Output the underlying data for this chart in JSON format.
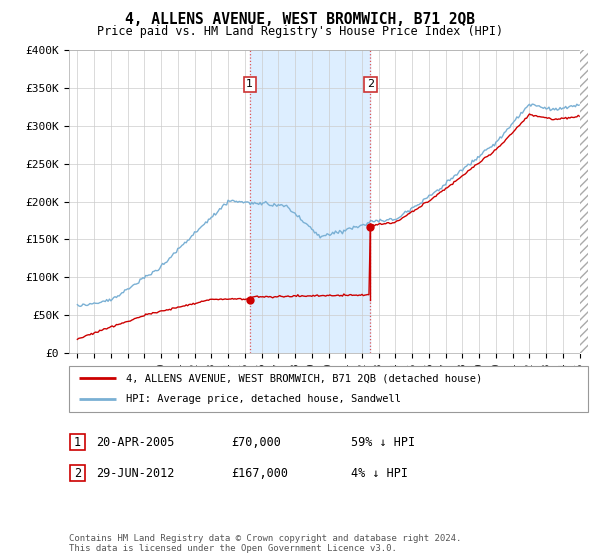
{
  "title": "4, ALLENS AVENUE, WEST BROMWICH, B71 2QB",
  "subtitle": "Price paid vs. HM Land Registry's House Price Index (HPI)",
  "legend_line1": "4, ALLENS AVENUE, WEST BROMWICH, B71 2QB (detached house)",
  "legend_line2": "HPI: Average price, detached house, Sandwell",
  "sale1_date": "20-APR-2005",
  "sale1_price": "£70,000",
  "sale1_hpi": "59% ↓ HPI",
  "sale2_date": "29-JUN-2012",
  "sale2_price": "£167,000",
  "sale2_hpi": "4% ↓ HPI",
  "footnote": "Contains HM Land Registry data © Crown copyright and database right 2024.\nThis data is licensed under the Open Government Licence v3.0.",
  "red_color": "#cc0000",
  "blue_color": "#7ab0d4",
  "shade_color": "#ddeeff",
  "ylim": [
    0,
    400000
  ],
  "yticks": [
    0,
    50000,
    100000,
    150000,
    200000,
    250000,
    300000,
    350000,
    400000
  ],
  "ytick_labels": [
    "£0",
    "£50K",
    "£100K",
    "£150K",
    "£200K",
    "£250K",
    "£300K",
    "£350K",
    "£400K"
  ],
  "sale1_year": 2005.3,
  "sale2_year": 2012.5,
  "sale1_price_val": 70000,
  "sale2_price_val": 167000
}
